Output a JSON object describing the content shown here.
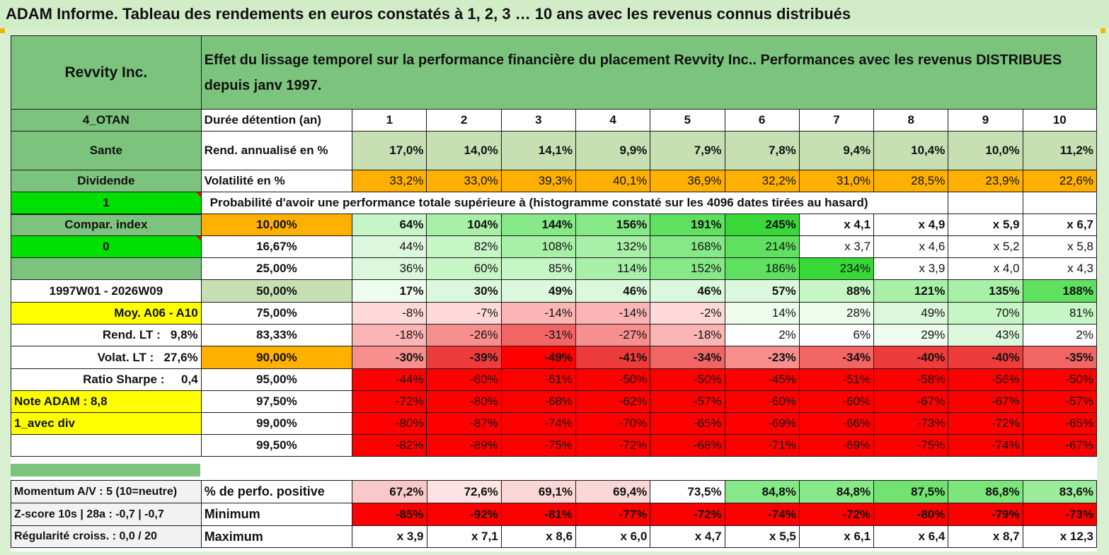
{
  "title": "ADAM Informe. Tableau des rendements en euros constatés à 1, 2, 3 … 10 ans avec les revenus connus distribués",
  "header": {
    "asset": "Revvity Inc.",
    "description": "Effet du lissage temporel sur la performance financière du placement Revvity Inc.. Performances avec les revenus DISTRIBUES depuis janv 1997."
  },
  "years": [
    "1",
    "2",
    "3",
    "4",
    "5",
    "6",
    "7",
    "8",
    "9",
    "10"
  ],
  "left_labels": {
    "otan": "4_OTAN",
    "sector": "Sante",
    "dividend": "Dividende",
    "flag1": "1",
    "compar": "Compar. index",
    "flag0": "0",
    "period": "1997W01 - 2026W09",
    "moy": "Moy. A06 - A10",
    "rend_lt_label": "Rend. LT :",
    "rend_lt_value": "9,8%",
    "volat_lt_label": "Volat. LT :",
    "volat_lt_value": "27,6%",
    "sharpe_label": "Ratio Sharpe :",
    "sharpe_value": "0,4",
    "note": "Note ADAM : 8,8",
    "avec_div": "1_avec div"
  },
  "rows_top": {
    "duree_label": "Durée détention (an)",
    "rend_label": "Rend. annualisé en %",
    "rend": [
      "17,0%",
      "14,0%",
      "14,1%",
      "9,9%",
      "7,9%",
      "7,8%",
      "9,4%",
      "10,4%",
      "10,0%",
      "11,2%"
    ],
    "vol_label": "Volatilité en %",
    "vol": [
      "33,2%",
      "33,0%",
      "39,3%",
      "40,1%",
      "36,9%",
      "32,2%",
      "31,0%",
      "28,5%",
      "23,9%",
      "22,6%"
    ],
    "proba_text": "Probabilité d'avoir une performance totale supérieure à (histogramme constaté sur les 4096 dates tirées au hasard)"
  },
  "prob_rows": [
    {
      "p": "10,00%",
      "vals": [
        "64%",
        "104%",
        "144%",
        "156%",
        "191%",
        "245%",
        "x 4,1",
        "x 4,9",
        "x 5,9",
        "x 6,7"
      ]
    },
    {
      "p": "16,67%",
      "vals": [
        "44%",
        "82%",
        "108%",
        "132%",
        "168%",
        "214%",
        "x 3,7",
        "x 4,6",
        "x 5,2",
        "x 5,8"
      ]
    },
    {
      "p": "25,00%",
      "vals": [
        "36%",
        "60%",
        "85%",
        "114%",
        "152%",
        "186%",
        "234%",
        "x 3,9",
        "x 4,0",
        "x 4,3"
      ]
    },
    {
      "p": "50,00%",
      "vals": [
        "17%",
        "30%",
        "49%",
        "46%",
        "46%",
        "57%",
        "88%",
        "121%",
        "135%",
        "188%"
      ]
    },
    {
      "p": "75,00%",
      "vals": [
        "-8%",
        "-7%",
        "-14%",
        "-14%",
        "-2%",
        "14%",
        "28%",
        "49%",
        "70%",
        "81%"
      ]
    },
    {
      "p": "83,33%",
      "vals": [
        "-18%",
        "-26%",
        "-31%",
        "-27%",
        "-18%",
        "2%",
        "6%",
        "29%",
        "43%",
        "2%"
      ]
    },
    {
      "p": "90,00%",
      "vals": [
        "-30%",
        "-39%",
        "-49%",
        "-41%",
        "-34%",
        "-23%",
        "-34%",
        "-40%",
        "-40%",
        "-35%"
      ]
    },
    {
      "p": "95,00%",
      "vals": [
        "-44%",
        "-60%",
        "-61%",
        "-50%",
        "-50%",
        "-45%",
        "-51%",
        "-58%",
        "-56%",
        "-50%"
      ]
    },
    {
      "p": "97,50%",
      "vals": [
        "-72%",
        "-80%",
        "-68%",
        "-62%",
        "-57%",
        "-60%",
        "-60%",
        "-67%",
        "-67%",
        "-57%"
      ]
    },
    {
      "p": "99,00%",
      "vals": [
        "-80%",
        "-87%",
        "-74%",
        "-70%",
        "-65%",
        "-69%",
        "-66%",
        "-73%",
        "-72%",
        "-65%"
      ]
    },
    {
      "p": "99,50%",
      "vals": [
        "-82%",
        "-89%",
        "-75%",
        "-72%",
        "-68%",
        "-71%",
        "-69%",
        "-75%",
        "-74%",
        "-67%"
      ]
    }
  ],
  "bottom": [
    {
      "left": "Momentum A/V : 5 (10=neutre)",
      "label": "% de perfo. positive",
      "vals": [
        "67,2%",
        "72,6%",
        "69,1%",
        "69,4%",
        "73,5%",
        "84,8%",
        "84,8%",
        "87,5%",
        "86,8%",
        "83,6%"
      ]
    },
    {
      "left": "Z-score 10s | 28a : -0,7 | -0,7",
      "label": "Minimum",
      "vals": [
        "-85%",
        "-92%",
        "-81%",
        "-77%",
        "-72%",
        "-74%",
        "-72%",
        "-80%",
        "-79%",
        "-73%"
      ]
    },
    {
      "left": "Régularité croiss. : 0,0 / 20",
      "label": "Maximum",
      "vals": [
        "x 3,9",
        "x 7,1",
        "x 8,6",
        "x 6,0",
        "x 4,7",
        "x 5,5",
        "x 6,1",
        "x 6,4",
        "x 8,7",
        "x 12,3"
      ]
    }
  ],
  "colors": {
    "header_green": "#7cc47d",
    "light_green": "#c6e0b4",
    "orange": "#ffb000",
    "yellow": "#ffff00",
    "bright_green": "#00e000",
    "red": "#ff0000"
  }
}
